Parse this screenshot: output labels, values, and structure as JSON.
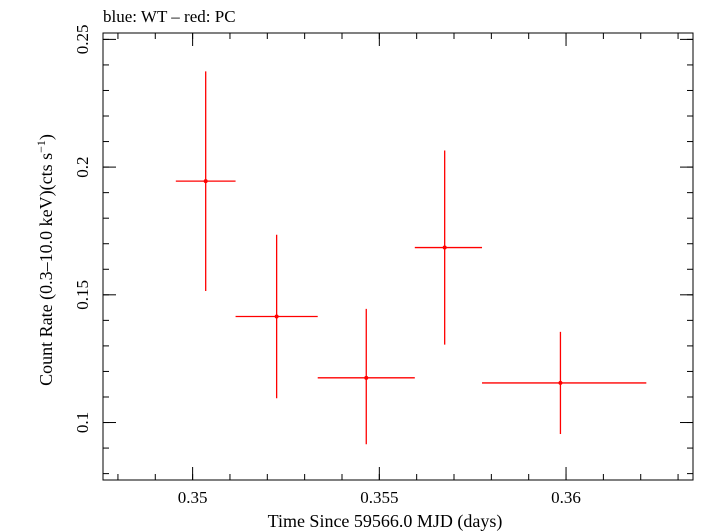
{
  "chart_data": {
    "type": "scatter",
    "title": "blue: WT – red: PC",
    "xlabel": "Time Since 59566.0 MJD (days)",
    "ylabel_main": "Count Rate (0.3–10.0 keV)(cts s",
    "ylabel_sup": "−1",
    "ylabel_close": ")",
    "xlim": [
      0.3476,
      0.3634
    ],
    "ylim": [
      0.0775,
      0.2525
    ],
    "x_ticks": [
      {
        "value": 0.35,
        "label": "0.35"
      },
      {
        "value": 0.355,
        "label": "0.355"
      },
      {
        "value": 0.36,
        "label": "0.36"
      }
    ],
    "y_ticks": [
      {
        "value": 0.1,
        "label": "0.1"
      },
      {
        "value": 0.15,
        "label": "0.15"
      },
      {
        "value": 0.2,
        "label": "0.2"
      },
      {
        "value": 0.25,
        "label": "0.25"
      }
    ],
    "x_minor_step": 0.001,
    "y_minor_step": 0.01,
    "series": [
      {
        "name": "PC",
        "color": "#ff0000",
        "points": [
          {
            "x": 0.35035,
            "xlo": 0.34955,
            "xhi": 0.35115,
            "y": 0.1945,
            "ylo": 0.1515,
            "yhi": 0.2375
          },
          {
            "x": 0.35225,
            "xlo": 0.35115,
            "xhi": 0.35335,
            "y": 0.1415,
            "ylo": 0.1095,
            "yhi": 0.1735
          },
          {
            "x": 0.35465,
            "xlo": 0.35335,
            "xhi": 0.35595,
            "y": 0.1175,
            "ylo": 0.0915,
            "yhi": 0.1445
          },
          {
            "x": 0.35675,
            "xlo": 0.35595,
            "xhi": 0.35775,
            "y": 0.1685,
            "ylo": 0.1305,
            "yhi": 0.2065
          },
          {
            "x": 0.35985,
            "xlo": 0.35775,
            "xhi": 0.36215,
            "y": 0.1155,
            "ylo": 0.0955,
            "yhi": 0.1355
          }
        ]
      }
    ]
  }
}
